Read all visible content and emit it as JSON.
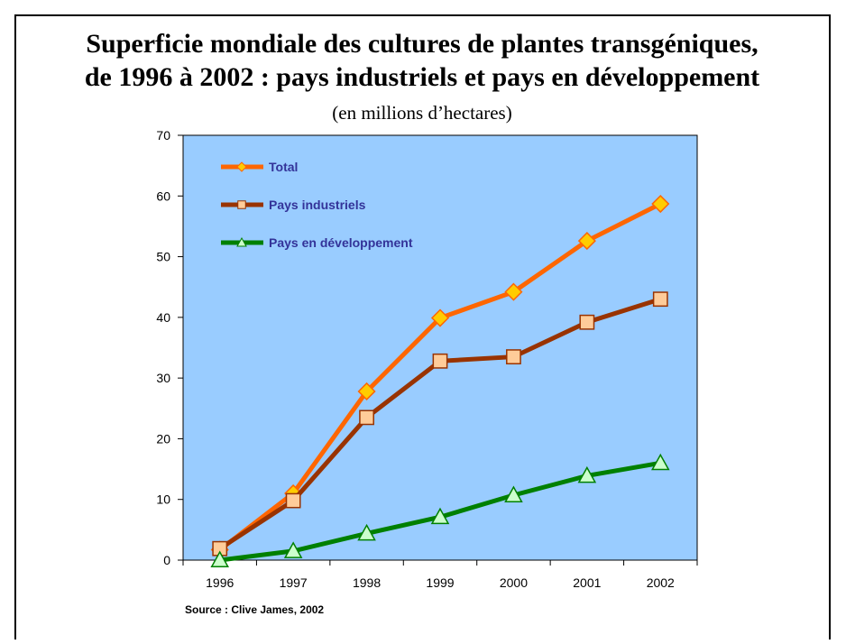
{
  "chart_data": {
    "type": "line",
    "title": "Superficie mondiale des cultures de plantes transgéniques, de 1996 à 2002 : pays industriels et pays en développement",
    "title_lines": [
      "Superficie mondiale des cultures de plantes transgéniques,",
      "de 1996 à 2002 : pays industriels et pays en développement"
    ],
    "subtitle": "(en millions d’hectares)",
    "source": "Source : Clive James, 2002",
    "categories": [
      "1996",
      "1997",
      "1998",
      "1999",
      "2000",
      "2001",
      "2002"
    ],
    "series": [
      {
        "name": "Total",
        "color": "#ff6600",
        "marker_color": "#ffcc00",
        "marker": "diamond",
        "values": [
          1.7,
          11,
          27.8,
          39.9,
          44.2,
          52.6,
          58.7
        ]
      },
      {
        "name": "Pays industriels",
        "color": "#993300",
        "marker_color": "#ffcc99",
        "marker": "square",
        "values": [
          1.9,
          9.8,
          23.5,
          32.8,
          33.5,
          39.2,
          43
        ]
      },
      {
        "name": "Pays en développement",
        "color": "#008000",
        "marker_color": "#ccffcc",
        "marker": "triangle",
        "values": [
          0,
          1.5,
          4.4,
          7.1,
          10.7,
          13.9,
          16
        ]
      }
    ],
    "ylim": [
      0,
      70
    ],
    "yticks": [
      0,
      10,
      20,
      30,
      40,
      50,
      60,
      70
    ],
    "legend": "top-left",
    "plot_background": "#99ccff"
  }
}
